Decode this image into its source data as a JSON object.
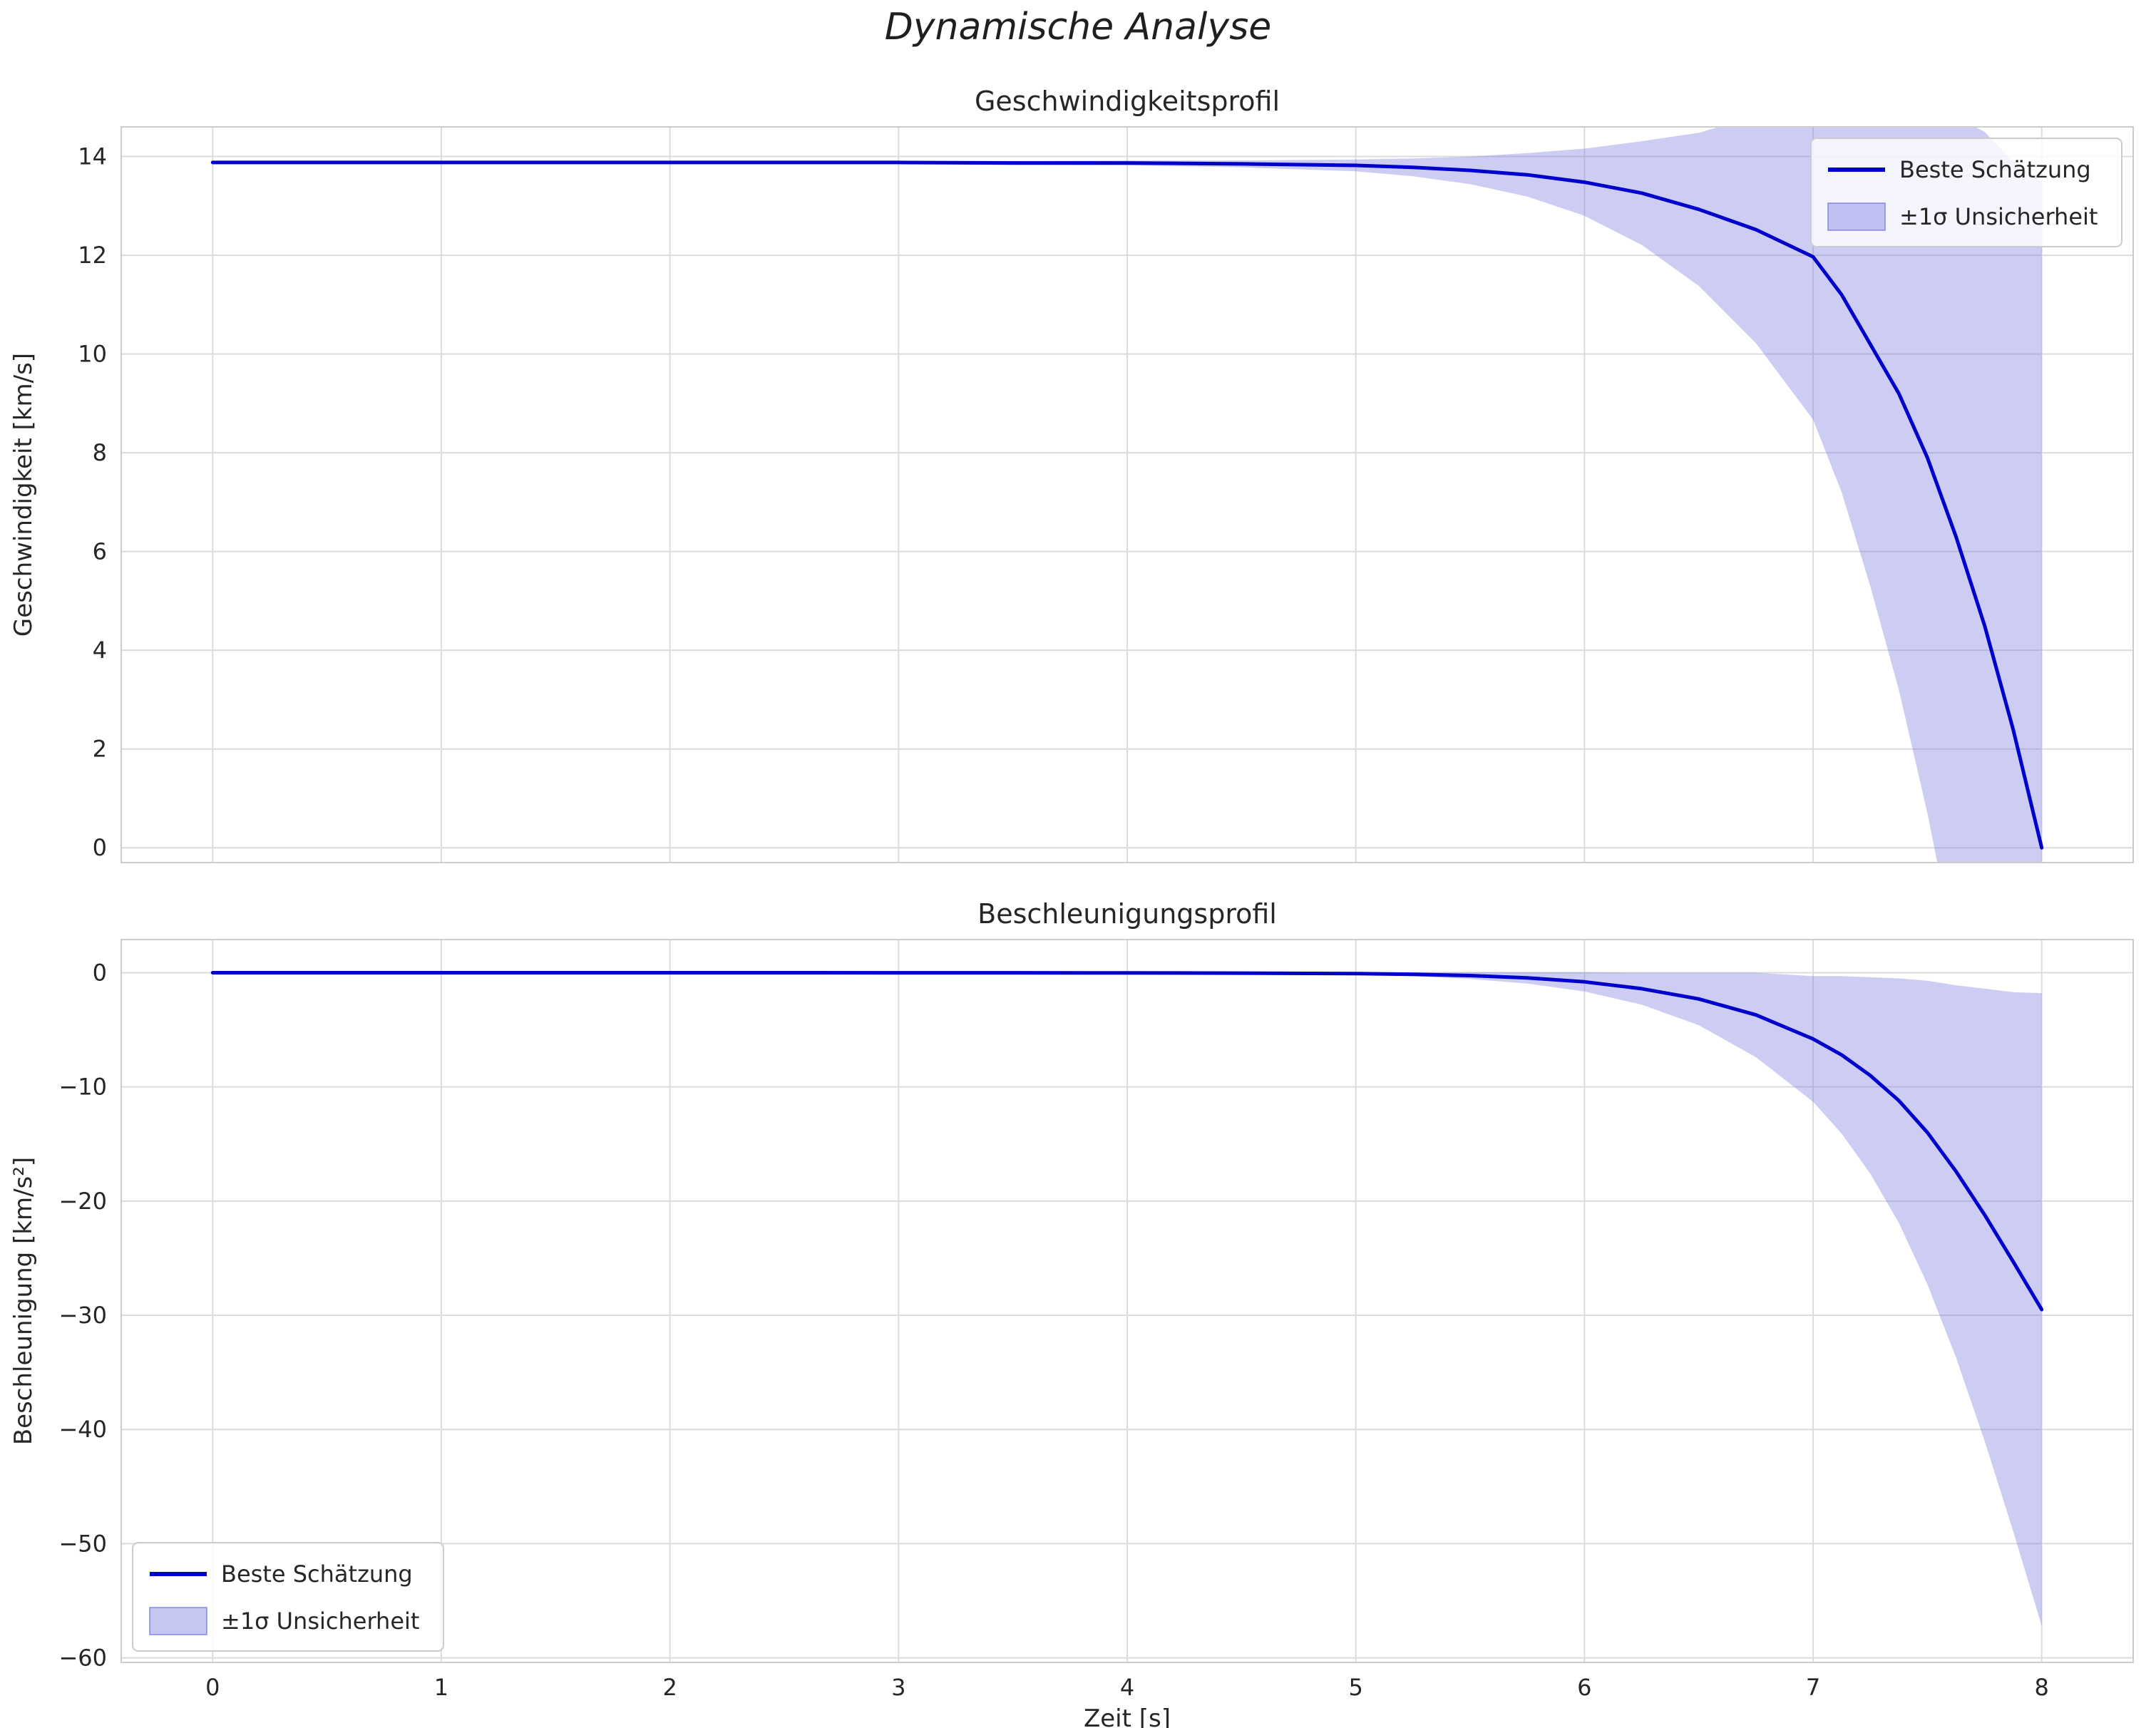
{
  "figure": {
    "title": "Dynamische Analyse",
    "background": "#ffffff"
  },
  "style": {
    "line_color": "#0000cd",
    "band_color": "#7070e0",
    "band_opacity": 0.35,
    "grid_color": "#dcdcdc",
    "spine_color": "#cccccc",
    "text_color": "#262626",
    "legend_face": "#ffffff",
    "legend_edge": "#cccccc"
  },
  "legend": {
    "line_label": "Beste Schätzung",
    "band_label": "±1σ Unsicherheit"
  },
  "chart_data": [
    {
      "type": "line",
      "title": "Geschwindigkeitsprofil",
      "xlabel": "",
      "ylabel": "Geschwindigkeit [km/s]",
      "xlim": [
        -0.4,
        8.4
      ],
      "ylim": [
        -0.3,
        14.6
      ],
      "xticks": [
        0,
        1,
        2,
        3,
        4,
        5,
        6,
        7,
        8
      ],
      "yticks": [
        0,
        2,
        4,
        6,
        8,
        10,
        12,
        14
      ],
      "show_xtick_labels": false,
      "grid": true,
      "legend_position": "upper-right",
      "x": [
        0,
        0.5,
        1,
        1.5,
        2,
        2.5,
        3,
        3.5,
        4,
        4.5,
        5,
        5.25,
        5.5,
        5.75,
        6,
        6.25,
        6.5,
        6.75,
        7,
        7.125,
        7.25,
        7.375,
        7.5,
        7.625,
        7.75,
        7.875,
        8
      ],
      "series": [
        {
          "name": "Beste Schätzung",
          "type": "line",
          "y": [
            13.88,
            13.88,
            13.88,
            13.88,
            13.88,
            13.88,
            13.88,
            13.87,
            13.87,
            13.85,
            13.82,
            13.78,
            13.72,
            13.63,
            13.48,
            13.26,
            12.93,
            12.52,
            11.97,
            11.2,
            10.2,
            9.2,
            7.9,
            6.3,
            4.5,
            2.4,
            0
          ]
        },
        {
          "name": "±1σ Unsicherheit",
          "type": "band",
          "y_upper": [
            13.91,
            13.91,
            13.91,
            13.91,
            13.91,
            13.91,
            13.91,
            13.91,
            13.92,
            13.92,
            13.94,
            13.96,
            14.0,
            14.07,
            14.16,
            14.31,
            14.48,
            14.82,
            15.27,
            15.2,
            15.1,
            15.2,
            15.1,
            14.8,
            14.5,
            13.9,
            13.5
          ],
          "y_lower": [
            13.85,
            13.85,
            13.85,
            13.85,
            13.85,
            13.85,
            13.85,
            13.83,
            13.82,
            13.78,
            13.7,
            13.6,
            13.44,
            13.19,
            12.8,
            12.21,
            11.38,
            10.22,
            8.67,
            7.2,
            5.3,
            3.2,
            0.7,
            -2.2,
            -5.5,
            -9.1,
            -13.5
          ]
        }
      ]
    },
    {
      "type": "line",
      "title": "Beschleunigungsprofil",
      "xlabel": "Zeit [s]",
      "ylabel": "Beschleunigung [km/s²]",
      "xlim": [
        -0.4,
        8.4
      ],
      "ylim": [
        -60.4,
        2.9
      ],
      "xticks": [
        0,
        1,
        2,
        3,
        4,
        5,
        6,
        7,
        8
      ],
      "yticks": [
        -60,
        -50,
        -40,
        -30,
        -20,
        -10,
        0
      ],
      "show_xtick_labels": true,
      "grid": true,
      "legend_position": "lower-left",
      "x": [
        0,
        0.5,
        1,
        1.5,
        2,
        2.5,
        3,
        3.5,
        4,
        4.5,
        5,
        5.25,
        5.5,
        5.75,
        6,
        6.25,
        6.5,
        6.75,
        7,
        7.125,
        7.25,
        7.375,
        7.5,
        7.625,
        7.75,
        7.875,
        8
      ],
      "series": [
        {
          "name": "Beste Schätzung",
          "type": "line",
          "y": [
            0,
            0,
            0,
            0,
            0,
            0,
            -0.01,
            -0.01,
            -0.02,
            -0.04,
            -0.08,
            -0.14,
            -0.25,
            -0.45,
            -0.8,
            -1.4,
            -2.3,
            -3.7,
            -5.8,
            -7.2,
            -9.0,
            -11.2,
            -14.0,
            -17.4,
            -21.2,
            -25.3,
            -29.5
          ]
        },
        {
          "name": "±1σ Unsicherheit",
          "type": "band",
          "y_upper": [
            0.02,
            0.02,
            0.02,
            0.02,
            0.02,
            0.02,
            0.01,
            0.02,
            0.02,
            0.02,
            0.02,
            0.03,
            0.05,
            0.05,
            0.05,
            0,
            0,
            0,
            -0.3,
            -0.3,
            -0.4,
            -0.5,
            -0.7,
            -1.1,
            -1.4,
            -1.7,
            -1.8
          ],
          "y_lower": [
            -0.02,
            -0.02,
            -0.02,
            -0.02,
            -0.02,
            -0.02,
            -0.03,
            -0.04,
            -0.06,
            -0.1,
            -0.18,
            -0.31,
            -0.55,
            -0.95,
            -1.65,
            -2.8,
            -4.6,
            -7.4,
            -11.3,
            -14.1,
            -17.6,
            -21.9,
            -27.3,
            -33.7,
            -41,
            -48.9,
            -57.2
          ]
        }
      ]
    }
  ]
}
